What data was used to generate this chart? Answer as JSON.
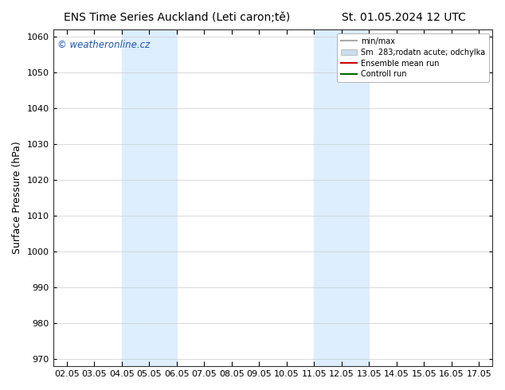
{
  "title_left": "ENS Time Series Auckland (Leti caron;tě)",
  "title_right": "St. 01.05.2024 12 UTC",
  "ylabel": "Surface Pressure (hPa)",
  "ylim": [
    968,
    1062
  ],
  "yticks": [
    970,
    980,
    990,
    1000,
    1010,
    1020,
    1030,
    1040,
    1050,
    1060
  ],
  "xtick_labels": [
    "02.05",
    "03.05",
    "04.05",
    "05.05",
    "06.05",
    "07.05",
    "08.05",
    "09.05",
    "10.05",
    "11.05",
    "12.05",
    "13.05",
    "14.05",
    "15.05",
    "16.05",
    "17.05"
  ],
  "shaded_regions": [
    {
      "xstart": 2,
      "xend": 4,
      "color": "#ddeeff"
    },
    {
      "xstart": 9,
      "xend": 11,
      "color": "#ddeeff"
    }
  ],
  "watermark_text": "© weatheronline.cz",
  "watermark_color": "#1a52c4",
  "bg_color": "#ffffff",
  "plot_bg_color": "#ffffff",
  "grid_color": "#cccccc",
  "legend_minmax_color": "#aaaaaa",
  "legend_std_color": "#ccddee",
  "legend_mean_color": "#cc0000",
  "legend_control_color": "#006600",
  "title_fontsize": 10,
  "tick_fontsize": 8,
  "ylabel_fontsize": 9
}
